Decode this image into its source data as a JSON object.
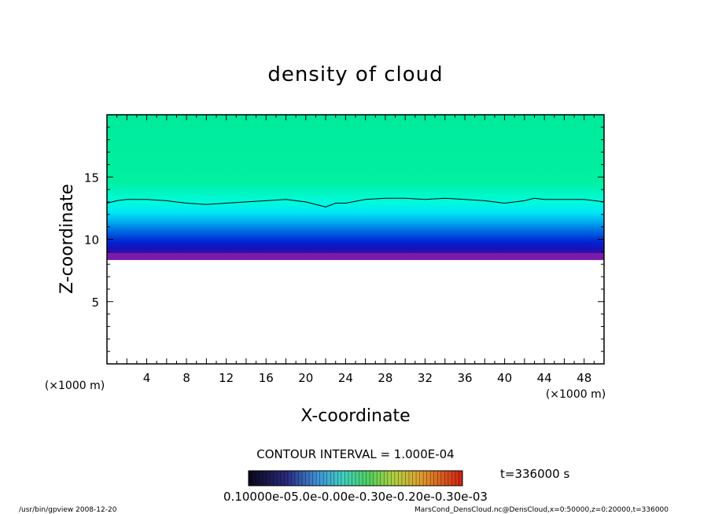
{
  "chart_data": {
    "type": "heatmap",
    "title": "density of cloud",
    "xlabel": "X-coordinate",
    "ylabel": "Z-coordinate",
    "x_unit": "(×1000 m)",
    "y_unit": "(×1000 m)",
    "xlim": [
      0,
      50
    ],
    "ylim": [
      0,
      20
    ],
    "x_ticks": [
      4,
      8,
      12,
      16,
      20,
      24,
      28,
      32,
      36,
      40,
      44,
      48
    ],
    "y_ticks": [
      5,
      10,
      15
    ],
    "x_tick_labels": [
      "4",
      "8",
      "12",
      "16",
      "20",
      "24",
      "28",
      "32",
      "36",
      "40",
      "44",
      "48"
    ],
    "y_tick_labels": [
      "5",
      "10",
      "15"
    ],
    "cloud_base_km": 8.4,
    "contour_line_z_km": [
      [
        0,
        12.9
      ],
      [
        1,
        13.1
      ],
      [
        2,
        13.2
      ],
      [
        4,
        13.2
      ],
      [
        6,
        13.1
      ],
      [
        8,
        12.9
      ],
      [
        10,
        12.8
      ],
      [
        12,
        12.9
      ],
      [
        14,
        13.0
      ],
      [
        16,
        13.1
      ],
      [
        18,
        13.2
      ],
      [
        20,
        13.0
      ],
      [
        21,
        12.8
      ],
      [
        22,
        12.6
      ],
      [
        23,
        12.9
      ],
      [
        24,
        12.9
      ],
      [
        26,
        13.2
      ],
      [
        28,
        13.3
      ],
      [
        30,
        13.3
      ],
      [
        32,
        13.2
      ],
      [
        34,
        13.3
      ],
      [
        36,
        13.2
      ],
      [
        38,
        13.1
      ],
      [
        40,
        12.9
      ],
      [
        42,
        13.1
      ],
      [
        43,
        13.3
      ],
      [
        44,
        13.2
      ],
      [
        46,
        13.2
      ],
      [
        48,
        13.2
      ],
      [
        50,
        13.0
      ]
    ],
    "contour_interval_text": "CONTOUR INTERVAL = 1.000E-04",
    "time_text": "t=336000 s",
    "colorbar_labels_text": "0.10000e-05.0e-0.00e-0.30e-0.20e-0.30e-03",
    "colorbar_colors": [
      "#000000",
      "#201060",
      "#1020a0",
      "#2050c0",
      "#30a0e0",
      "#40d0d0",
      "#40e0a0",
      "#60d060",
      "#b0d040",
      "#e0b030",
      "#e06020",
      "#c01010"
    ]
  },
  "footer": {
    "left": "/usr/bin/gpview   2008-12-20",
    "right": "MarsCond_DensCloud.nc@DensCloud,x=0:50000,z=0:20000,t=336000"
  }
}
